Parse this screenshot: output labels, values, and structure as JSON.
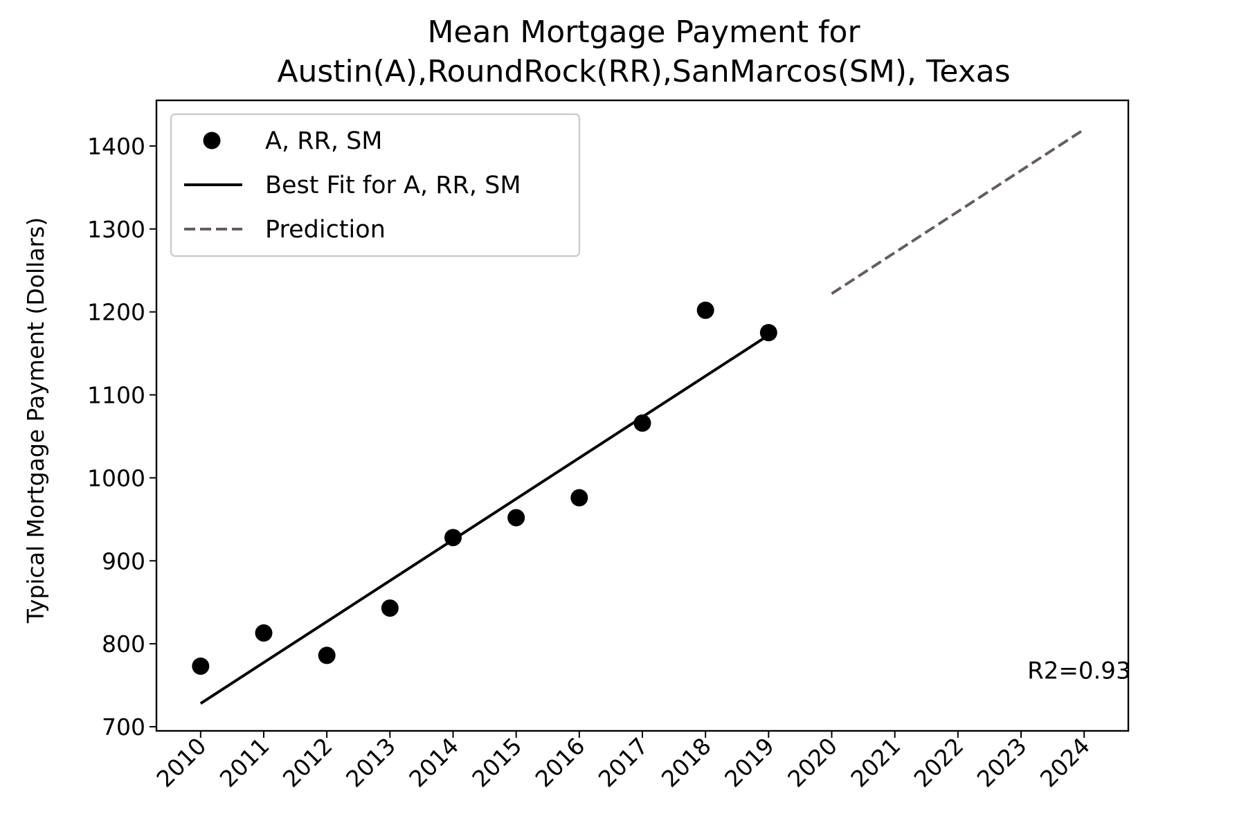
{
  "chart_data": {
    "type": "scatter",
    "title_lines": [
      "Mean Mortgage Payment for",
      "Austin(A),RoundRock(RR),SanMarcos(SM), Texas"
    ],
    "xlabel": "",
    "ylabel": "Typical Mortgage Payment (Dollars)",
    "x_ticks": [
      "2010",
      "2011",
      "2012",
      "2013",
      "2014",
      "2015",
      "2016",
      "2017",
      "2018",
      "2019",
      "2020",
      "2021",
      "2022",
      "2023",
      "2024"
    ],
    "y_ticks": [
      700,
      800,
      900,
      1000,
      1100,
      1200,
      1300,
      1400
    ],
    "xlim": [
      2009.3,
      2024.7
    ],
    "ylim": [
      695,
      1455
    ],
    "grid": false,
    "legend_position": "top-left",
    "series": [
      {
        "name": "A, RR, SM",
        "kind": "scatter",
        "color": "#000000",
        "x": [
          2010,
          2011,
          2012,
          2013,
          2014,
          2015,
          2016,
          2017,
          2018,
          2019
        ],
        "y": [
          773,
          813,
          786,
          843,
          928,
          952,
          976,
          1066,
          1202,
          1175
        ]
      },
      {
        "name": "Best Fit for A, RR, SM",
        "kind": "line",
        "color": "#000000",
        "x": [
          2010,
          2019
        ],
        "y": [
          728,
          1172
        ]
      },
      {
        "name": "Prediction",
        "kind": "dashed-line",
        "color": "#665c5c",
        "x": [
          2020,
          2024
        ],
        "y": [
          1222,
          1420
        ]
      }
    ],
    "annotation": {
      "text": "R2=0.93",
      "x": 2023.1,
      "y": 768
    }
  }
}
